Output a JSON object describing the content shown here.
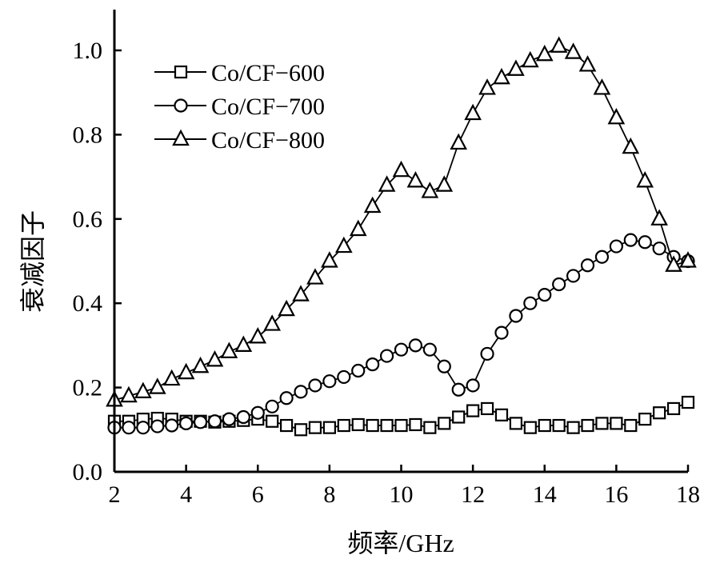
{
  "chart_data": {
    "type": "line",
    "title": "",
    "xlabel": "频率/GHz",
    "ylabel": "衰减因子",
    "xlim": [
      2,
      18
    ],
    "ylim": [
      0,
      1.0
    ],
    "xticks": [
      "2",
      "4",
      "6",
      "8",
      "10",
      "12",
      "14",
      "16",
      "18"
    ],
    "yticks": [
      "0.0",
      "0.2",
      "0.4",
      "0.6",
      "0.8",
      "1.0"
    ],
    "grid": false,
    "legend_position": "top-left",
    "x": [
      2,
      2.4,
      2.8,
      3.2,
      3.6,
      4,
      4.4,
      4.8,
      5.2,
      5.6,
      6,
      6.4,
      6.8,
      7.2,
      7.6,
      8,
      8.4,
      8.8,
      9.2,
      9.6,
      10,
      10.4,
      10.8,
      11.2,
      11.6,
      12,
      12.4,
      12.8,
      13.2,
      13.6,
      14,
      14.4,
      14.8,
      15.2,
      15.6,
      16,
      16.4,
      16.8,
      17.2,
      17.6,
      18
    ],
    "series": [
      {
        "name": "Co/CF−600",
        "marker": "square",
        "values": [
          0.12,
          0.12,
          0.125,
          0.127,
          0.125,
          0.12,
          0.12,
          0.118,
          0.12,
          0.122,
          0.125,
          0.12,
          0.11,
          0.1,
          0.105,
          0.105,
          0.11,
          0.112,
          0.11,
          0.11,
          0.11,
          0.112,
          0.105,
          0.115,
          0.13,
          0.145,
          0.15,
          0.135,
          0.115,
          0.105,
          0.11,
          0.11,
          0.105,
          0.11,
          0.115,
          0.115,
          0.11,
          0.125,
          0.14,
          0.15,
          0.165
        ]
      },
      {
        "name": "Co/CF−700",
        "marker": "circle",
        "values": [
          0.105,
          0.105,
          0.105,
          0.108,
          0.11,
          0.115,
          0.118,
          0.12,
          0.125,
          0.13,
          0.14,
          0.155,
          0.175,
          0.19,
          0.205,
          0.215,
          0.225,
          0.24,
          0.255,
          0.275,
          0.29,
          0.3,
          0.29,
          0.25,
          0.195,
          0.205,
          0.28,
          0.33,
          0.37,
          0.4,
          0.42,
          0.445,
          0.465,
          0.49,
          0.51,
          0.535,
          0.55,
          0.545,
          0.53,
          0.51,
          0.5
        ]
      },
      {
        "name": "Co/CF−800",
        "marker": "triangle",
        "values": [
          0.17,
          0.18,
          0.19,
          0.2,
          0.22,
          0.235,
          0.25,
          0.265,
          0.285,
          0.3,
          0.32,
          0.35,
          0.385,
          0.42,
          0.46,
          0.5,
          0.535,
          0.575,
          0.63,
          0.68,
          0.715,
          0.69,
          0.665,
          0.68,
          0.78,
          0.85,
          0.91,
          0.935,
          0.955,
          0.975,
          0.99,
          1.01,
          0.995,
          0.965,
          0.91,
          0.84,
          0.77,
          0.69,
          0.6,
          0.49,
          0.5
        ]
      }
    ]
  }
}
